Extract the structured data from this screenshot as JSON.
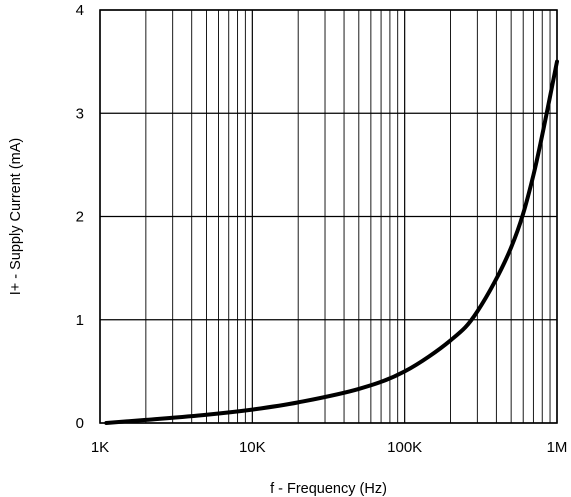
{
  "chart_data": {
    "type": "line",
    "title": "",
    "xlabel": "f - Frequency (Hz)",
    "ylabel": "I+ - Supply Current (mA)",
    "x_scale": "log",
    "xlim": [
      1000,
      1000000
    ],
    "ylim": [
      0,
      4
    ],
    "grid": true,
    "x_ticks": [
      {
        "value": 1000,
        "label": "1K"
      },
      {
        "value": 10000,
        "label": "10K"
      },
      {
        "value": 100000,
        "label": "100K"
      },
      {
        "value": 1000000,
        "label": "1M"
      }
    ],
    "y_ticks": [
      {
        "value": 0,
        "label": "0"
      },
      {
        "value": 1,
        "label": "1"
      },
      {
        "value": 2,
        "label": "2"
      },
      {
        "value": 3,
        "label": "3"
      },
      {
        "value": 4,
        "label": "4"
      }
    ],
    "series": [
      {
        "color": "#000000",
        "x": [
          1100,
          2000,
          5000,
          10000,
          20000,
          50000,
          100000,
          200000,
          300000,
          500000,
          700000,
          1000000
        ],
        "y": [
          0.0,
          0.03,
          0.08,
          0.13,
          0.2,
          0.33,
          0.5,
          0.8,
          1.08,
          1.7,
          2.4,
          3.5
        ]
      }
    ]
  }
}
